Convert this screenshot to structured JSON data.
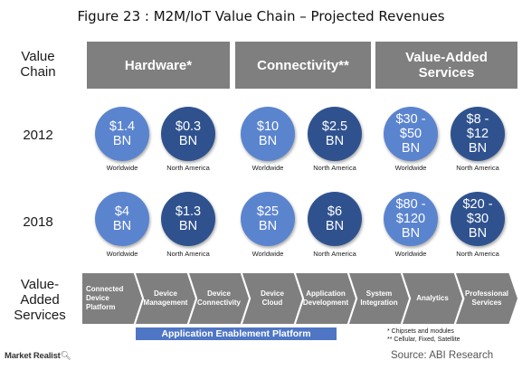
{
  "title": "Figure 23 : M2M/IoT Value Chain – Projected Revenues",
  "row_labels": {
    "value_chain": "Value\nChain",
    "year_2012": "2012",
    "year_2018": "2018",
    "value_added_services": "Value-\nAdded\nServices"
  },
  "columns": [
    {
      "header": "Hardware*"
    },
    {
      "header": "Connectivity**"
    },
    {
      "header": "Value-Added\nServices"
    }
  ],
  "revenues_2012": [
    {
      "value": "$1.4\nBN",
      "region": "Worldwide"
    },
    {
      "value": "$0.3\nBN",
      "region": "North America"
    },
    {
      "value": "$10\nBN",
      "region": "Worldwide"
    },
    {
      "value": "$2.5\nBN",
      "region": "North America"
    },
    {
      "value": "$30 -\n$50\nBN",
      "region": "Worldwide"
    },
    {
      "value": "$8 -\n$12\nBN",
      "region": "North America"
    }
  ],
  "revenues_2018": [
    {
      "value": "$4\nBN",
      "region": "Worldwide"
    },
    {
      "value": "$1.3\nBN",
      "region": "North America"
    },
    {
      "value": "$25\nBN",
      "region": "Worldwide"
    },
    {
      "value": "$6\nBN",
      "region": "North America"
    },
    {
      "value": "$80 -\n$120\nBN",
      "region": "Worldwide"
    },
    {
      "value": "$20 -\n$30\nBN",
      "region": "North America"
    }
  ],
  "services_chain": [
    "Connected\nDevice\nPlatform",
    "Device\nManagement",
    "Device\nConnectivity",
    "Device\nCloud",
    "Application\nDevelopment",
    "System\nIntegration",
    "Analytics",
    "Professional\nServices"
  ],
  "platform_bar": "Application Enablement Platform",
  "footnotes": [
    "*  Chipsets and modules",
    "**  Cellular, Fixed, Satellite"
  ],
  "source": "Source: ABI Research",
  "logo": "Market Realist",
  "colors": {
    "header_gray": "#7f7f7f",
    "bubble_light": "#5b84cf",
    "bubble_dark": "#2f528f",
    "bar_blue": "#4f76c5"
  }
}
